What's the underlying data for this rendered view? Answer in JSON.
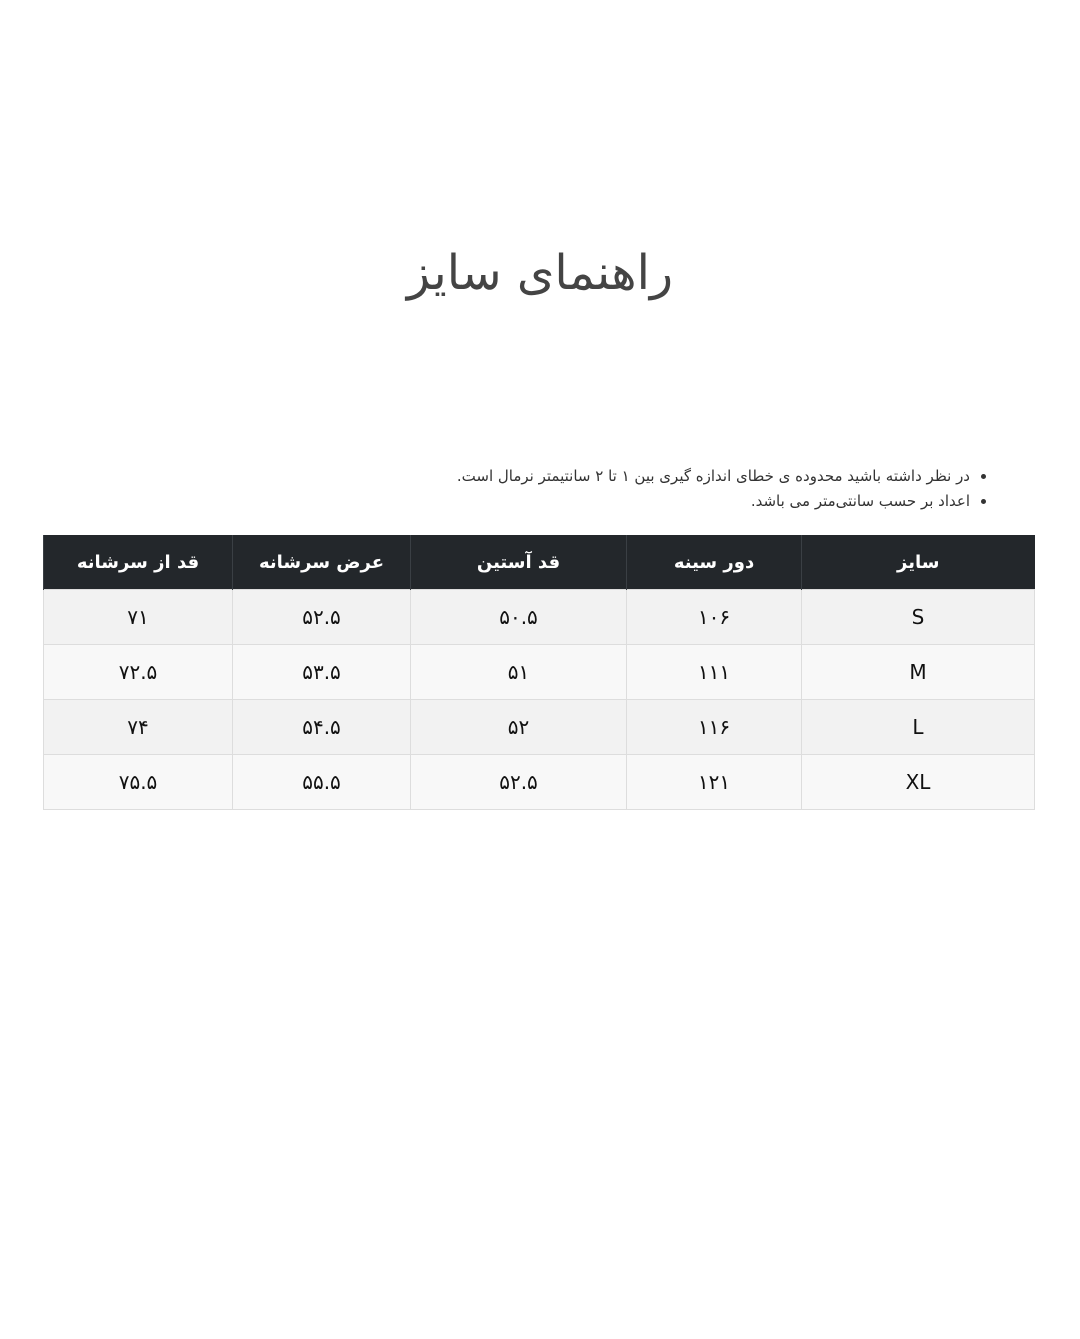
{
  "title": "راهنمای سایز",
  "notes": [
    "در نظر داشته باشید محدوده ی خطای اندازه گیری بین ۱ تا ۲ سانتیمتر نرمال است.",
    "اعداد بر حسب سانتی‌متر می باشد."
  ],
  "table": {
    "headers": [
      "سایز",
      "دور سینه",
      "قد آستین",
      "عرض سرشانه",
      "قد از سرشانه"
    ],
    "rows": [
      [
        "S",
        "۱۰۶",
        "۵۰.۵",
        "۵۲.۵",
        "۷۱"
      ],
      [
        "M",
        "۱۱۱",
        "۵۱",
        "۵۳.۵",
        "۷۲.۵"
      ],
      [
        "L",
        "۱۱۶",
        "۵۲",
        "۵۴.۵",
        "۷۴"
      ],
      [
        "XL",
        "۱۲۱",
        "۵۲.۵",
        "۵۵.۵",
        "۷۵.۵"
      ]
    ]
  }
}
